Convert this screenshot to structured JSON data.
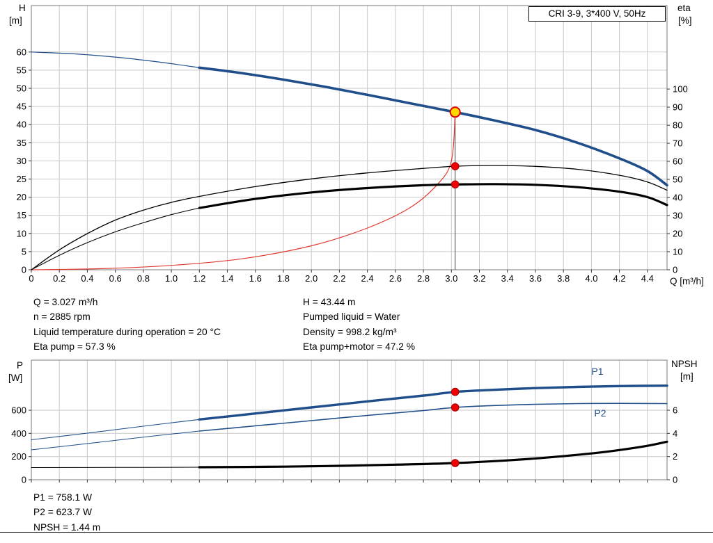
{
  "colors": {
    "curve_blue": "#1f4e8a",
    "curve_red": "#e03a30",
    "curve_black": "#000000",
    "grid": "#c9c9c9",
    "frame": "#7a7a7a",
    "tick": "#333333",
    "duty_fill": "#ffd800",
    "duty_ring": "#e00000",
    "dot_fill": "#f00000",
    "dot_ring": "#a00000",
    "duty_line": "#444444"
  },
  "operating_point_info": {
    "left": [
      "Q = 3.027 m³/h",
      "n = 2885 rpm",
      "Liquid temperature during operation = 20 °C",
      "Eta pump = 57.3 %"
    ],
    "right": [
      "H = 43.44 m",
      "Pumped liquid = Water",
      "Density = 998.2 kg/m³",
      "Eta pump+motor = 47.2 %"
    ]
  },
  "power_info": [
    "P1 = 758.1 W",
    "P2 = 623.7 W",
    "NPSH = 1.44 m"
  ],
  "chart_data": [
    {
      "type": "line",
      "title": "CRI 3-9, 3*400 V, 50Hz",
      "x_label": "Q [m³/h]",
      "y_left_label": [
        "H",
        "[m]"
      ],
      "y_right_label": [
        "eta",
        "[%]"
      ],
      "xlim": [
        0,
        4.54
      ],
      "x_ticks": [
        "0",
        "0.2",
        "0.4",
        "0.6",
        "0.8",
        "1.0",
        "1.2",
        "1.4",
        "1.6",
        "1.8",
        "2.0",
        "2.2",
        "2.4",
        "2.6",
        "2.8",
        "3.0",
        "3.2",
        "3.4",
        "3.6",
        "3.8",
        "4.0",
        "4.2",
        "4.4"
      ],
      "show_x_tick_labels": true,
      "y_left": {
        "lim": [
          0,
          72.8
        ],
        "ticks": [
          "0",
          "5",
          "10",
          "15",
          "20",
          "25",
          "30",
          "35",
          "40",
          "45",
          "50",
          "55",
          "60"
        ]
      },
      "y_right": {
        "lim": [
          0,
          146.2
        ],
        "ticks": [
          "0",
          "10",
          "20",
          "30",
          "40",
          "50",
          "60",
          "70",
          "80",
          "90",
          "100"
        ]
      },
      "grid": true,
      "series": [
        {
          "name": "head-curve-ext",
          "axis": "left",
          "color_key": "curve_blue",
          "width": 1.2,
          "points": [
            [
              0,
              60
            ],
            [
              0.3,
              59.5
            ],
            [
              0.6,
              58.6
            ],
            [
              0.9,
              57.3
            ],
            [
              1.2,
              55.7
            ]
          ]
        },
        {
          "name": "head-curve",
          "axis": "left",
          "color_key": "curve_blue",
          "width": 3.6,
          "points": [
            [
              1.2,
              55.7
            ],
            [
              1.5,
              54.2
            ],
            [
              1.8,
              52.4
            ],
            [
              2.1,
              50.4
            ],
            [
              2.4,
              48.2
            ],
            [
              2.7,
              45.9
            ],
            [
              3.027,
              43.44
            ],
            [
              3.3,
              41.2
            ],
            [
              3.6,
              38.5
            ],
            [
              3.9,
              35.0
            ],
            [
              4.2,
              30.7
            ],
            [
              4.4,
              27.2
            ],
            [
              4.54,
              23.3
            ]
          ]
        },
        {
          "name": "system-curve",
          "axis": "left",
          "color_key": "curve_red",
          "width": 1.2,
          "points": [
            [
              0,
              0
            ],
            [
              0.5,
              0.3
            ],
            [
              1.0,
              1.2
            ],
            [
              1.5,
              3.0
            ],
            [
              2.0,
              6.6
            ],
            [
              2.4,
              11.5
            ],
            [
              2.7,
              17.0
            ],
            [
              2.9,
              23.5
            ],
            [
              3.0,
              30.0
            ],
            [
              3.027,
              43.44
            ]
          ]
        },
        {
          "name": "eta-pump-curve",
          "axis": "right",
          "color_key": "curve_black",
          "width": 1.3,
          "points": [
            [
              0,
              0
            ],
            [
              0.2,
              11
            ],
            [
              0.4,
              20
            ],
            [
              0.6,
              27.5
            ],
            [
              0.8,
              33
            ],
            [
              1.0,
              37.3
            ],
            [
              1.2,
              40.6
            ],
            [
              1.6,
              46
            ],
            [
              2.0,
              50.3
            ],
            [
              2.4,
              53.6
            ],
            [
              2.8,
              56.1
            ],
            [
              3.027,
              57.3
            ],
            [
              3.3,
              57.7
            ],
            [
              3.6,
              57.2
            ],
            [
              3.9,
              55.6
            ],
            [
              4.2,
              52.3
            ],
            [
              4.4,
              48.6
            ],
            [
              4.54,
              44.0
            ]
          ]
        },
        {
          "name": "eta-pump-motor-ext",
          "axis": "right",
          "color_key": "curve_black",
          "width": 1.1,
          "points": [
            [
              0,
              0
            ],
            [
              0.2,
              8
            ],
            [
              0.4,
              15
            ],
            [
              0.6,
              21
            ],
            [
              0.8,
              26
            ],
            [
              1.0,
              30.5
            ],
            [
              1.2,
              34.2
            ]
          ]
        },
        {
          "name": "eta-pump-motor-curve",
          "axis": "right",
          "color_key": "curve_black",
          "width": 3.2,
          "points": [
            [
              1.2,
              34.2
            ],
            [
              1.6,
              39.2
            ],
            [
              2.0,
              42.8
            ],
            [
              2.4,
              45.2
            ],
            [
              2.8,
              46.8
            ],
            [
              3.027,
              47.2
            ],
            [
              3.3,
              47.4
            ],
            [
              3.6,
              47.0
            ],
            [
              3.9,
              45.7
            ],
            [
              4.2,
              43.2
            ],
            [
              4.4,
              40.2
            ],
            [
              4.54,
              35.8
            ]
          ]
        }
      ],
      "duty_line": {
        "q": 3.027,
        "to_value": 43.44,
        "axis": "left"
      },
      "markers": [
        {
          "q": 3.027,
          "value": 43.44,
          "axis": "left",
          "style": "duty",
          "name": "duty-point-qh"
        },
        {
          "q": 3.027,
          "value": 57.3,
          "axis": "right",
          "style": "dot",
          "name": "duty-point-eta-pump"
        },
        {
          "q": 3.027,
          "value": 47.2,
          "axis": "right",
          "style": "dot",
          "name": "duty-point-eta-pump-motor"
        }
      ]
    },
    {
      "type": "line",
      "title": "",
      "x_label": "",
      "y_left_label": [
        "P",
        "[W]"
      ],
      "y_right_label": [
        "NPSH",
        "[m]"
      ],
      "xlim": [
        0,
        4.54
      ],
      "x_ticks": [
        "0",
        "0.2",
        "0.4",
        "0.6",
        "0.8",
        "1.0",
        "1.2",
        "1.4",
        "1.6",
        "1.8",
        "2.0",
        "2.2",
        "2.4",
        "2.6",
        "2.8",
        "3.0",
        "3.2",
        "3.4",
        "3.6",
        "3.8",
        "4.0",
        "4.2",
        "4.4"
      ],
      "show_x_tick_labels": false,
      "y_left": {
        "lim": [
          0,
          1032
        ],
        "ticks": [
          "0",
          "200",
          "400",
          "600"
        ]
      },
      "y_right": {
        "lim": [
          0,
          10.32
        ],
        "ticks": [
          "0",
          "2",
          "4",
          "6"
        ]
      },
      "grid": true,
      "series": [
        {
          "name": "p1-curve-ext",
          "axis": "left",
          "color_key": "curve_blue",
          "width": 1.1,
          "points": [
            [
              0,
              345
            ],
            [
              0.4,
              402
            ],
            [
              0.8,
              462
            ],
            [
              1.2,
              520
            ]
          ]
        },
        {
          "name": "p1-curve",
          "axis": "left",
          "color_key": "curve_blue",
          "width": 3.4,
          "label": {
            "text": "P1",
            "q": 4.0,
            "value": 905
          },
          "points": [
            [
              1.2,
              520
            ],
            [
              1.6,
              572
            ],
            [
              2.0,
              624
            ],
            [
              2.4,
              676
            ],
            [
              2.8,
              726
            ],
            [
              3.027,
              758
            ],
            [
              3.3,
              776
            ],
            [
              3.6,
              791
            ],
            [
              3.9,
              801
            ],
            [
              4.2,
              808
            ],
            [
              4.54,
              812
            ]
          ]
        },
        {
          "name": "p2-curve-ext",
          "axis": "left",
          "color_key": "curve_blue",
          "width": 1.0,
          "points": [
            [
              0,
              258
            ],
            [
              0.4,
              312
            ],
            [
              0.8,
              368
            ],
            [
              1.2,
              420
            ]
          ]
        },
        {
          "name": "p2-curve",
          "axis": "left",
          "color_key": "curve_blue",
          "width": 1.6,
          "label": {
            "text": "P2",
            "q": 4.02,
            "value": 545
          },
          "points": [
            [
              1.2,
              420
            ],
            [
              1.6,
              465
            ],
            [
              2.0,
              510
            ],
            [
              2.4,
              555
            ],
            [
              2.8,
              597
            ],
            [
              3.027,
              624
            ],
            [
              3.3,
              640
            ],
            [
              3.6,
              651
            ],
            [
              3.9,
              657
            ],
            [
              4.2,
              659
            ],
            [
              4.54,
              657
            ]
          ]
        },
        {
          "name": "npsh-curve-ext",
          "axis": "right",
          "color_key": "curve_black",
          "width": 1.0,
          "points": [
            [
              0,
              1.05
            ],
            [
              0.6,
              1.06
            ],
            [
              1.2,
              1.08
            ]
          ]
        },
        {
          "name": "npsh-curve",
          "axis": "right",
          "color_key": "curve_black",
          "width": 3.2,
          "points": [
            [
              1.2,
              1.08
            ],
            [
              1.8,
              1.13
            ],
            [
              2.2,
              1.2
            ],
            [
              2.6,
              1.3
            ],
            [
              3.027,
              1.44
            ],
            [
              3.4,
              1.67
            ],
            [
              3.7,
              1.93
            ],
            [
              4.0,
              2.27
            ],
            [
              4.2,
              2.56
            ],
            [
              4.4,
              2.93
            ],
            [
              4.54,
              3.28
            ]
          ]
        }
      ],
      "markers": [
        {
          "q": 3.027,
          "value": 758.1,
          "axis": "left",
          "style": "dot",
          "name": "duty-point-p1"
        },
        {
          "q": 3.027,
          "value": 623.7,
          "axis": "left",
          "style": "dot",
          "name": "duty-point-p2"
        },
        {
          "q": 3.027,
          "value": 1.44,
          "axis": "right",
          "style": "dot",
          "name": "duty-point-npsh"
        }
      ]
    }
  ]
}
